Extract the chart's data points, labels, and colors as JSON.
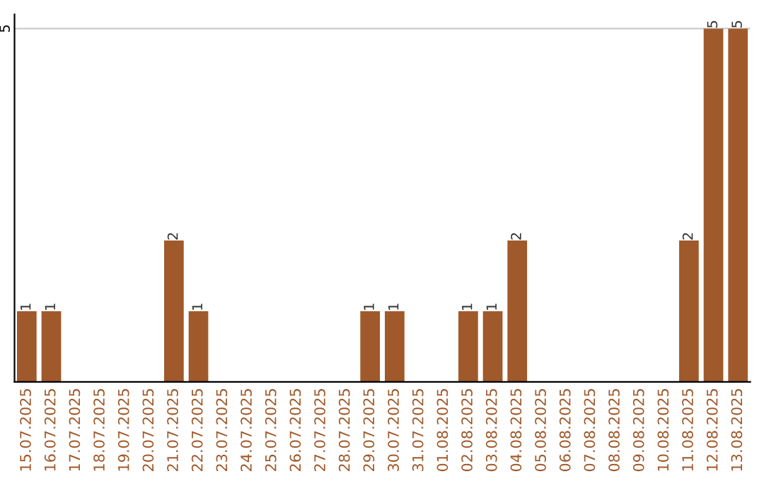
{
  "chart_data": {
    "type": "bar",
    "categories": [
      "15.07.2025",
      "16.07.2025",
      "17.07.2025",
      "18.07.2025",
      "19.07.2025",
      "20.07.2025",
      "21.07.2025",
      "22.07.2025",
      "23.07.2025",
      "24.07.2025",
      "25.07.2025",
      "26.07.2025",
      "27.07.2025",
      "28.07.2025",
      "29.07.2025",
      "30.07.2025",
      "31.07.2025",
      "01.08.2025",
      "02.08.2025",
      "03.08.2025",
      "04.08.2025",
      "05.08.2025",
      "06.08.2025",
      "07.08.2025",
      "08.08.2025",
      "09.08.2025",
      "10.08.2025",
      "11.08.2025",
      "12.08.2025",
      "13.08.2025"
    ],
    "values": [
      1,
      1,
      0,
      0,
      0,
      0,
      2,
      1,
      0,
      0,
      0,
      0,
      0,
      0,
      1,
      1,
      0,
      0,
      1,
      1,
      2,
      0,
      0,
      0,
      0,
      0,
      0,
      2,
      5,
      5
    ],
    "value_labels": [
      "1",
      "1",
      null,
      null,
      null,
      null,
      "2",
      "1",
      null,
      null,
      null,
      null,
      null,
      null,
      "1",
      "1",
      null,
      null,
      "1",
      "1",
      "2",
      null,
      null,
      null,
      null,
      null,
      null,
      "2",
      "5",
      "5"
    ],
    "color": "#a0592a",
    "ylim": [
      0,
      5.2
    ],
    "yticks": [
      5
    ],
    "grid": "y"
  }
}
